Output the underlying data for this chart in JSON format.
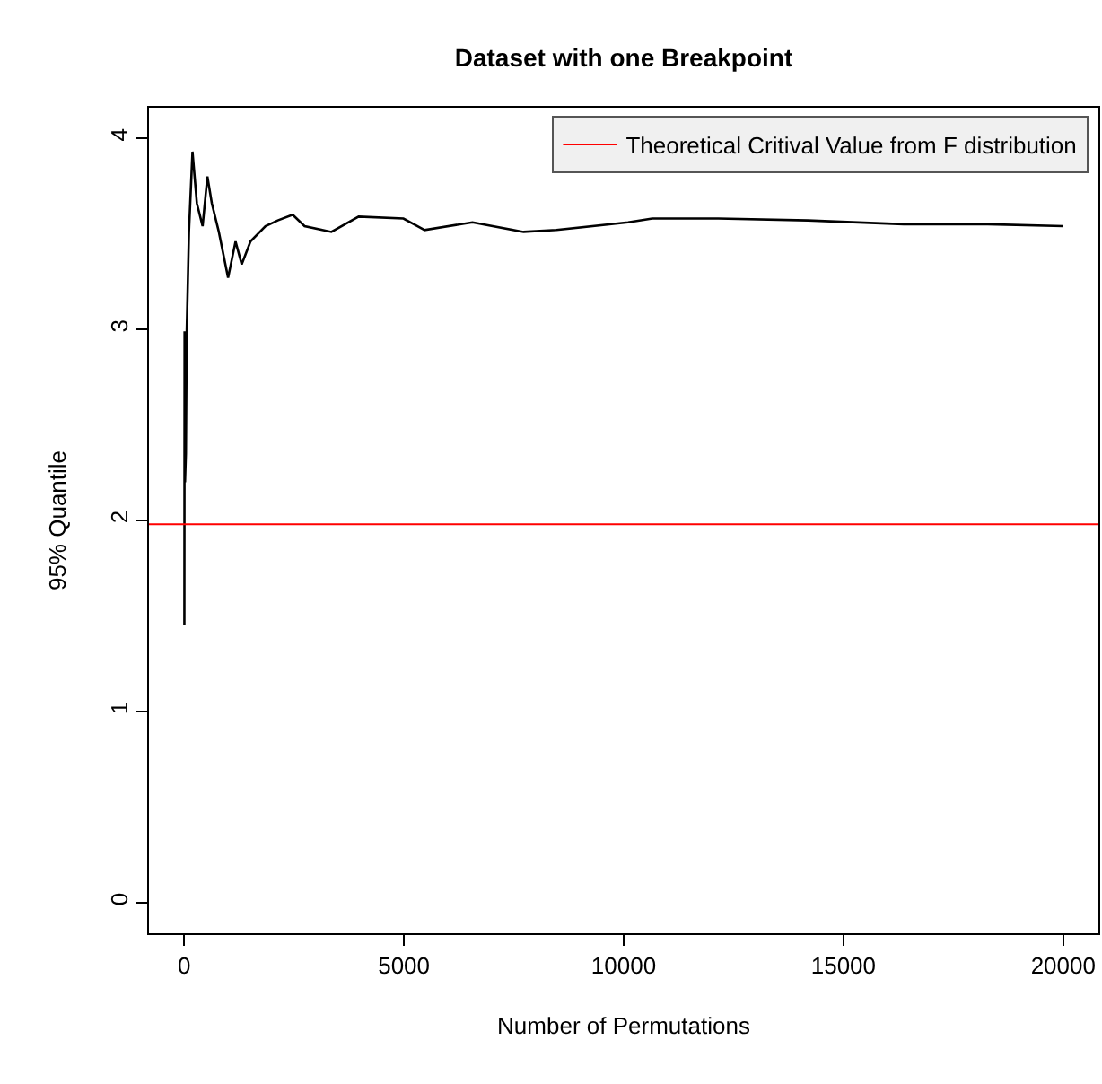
{
  "chart_data": {
    "type": "line",
    "title": "Dataset with one Breakpoint",
    "xlabel": "Number of Permutations",
    "ylabel": "95% Quantile",
    "series": [
      {
        "color": "#000000",
        "x": [
          5,
          10,
          20,
          40,
          60,
          80,
          110,
          190,
          290,
          420,
          530,
          630,
          790,
          1000,
          1170,
          1310,
          1510,
          1850,
          2130,
          2470,
          2740,
          3350,
          3970,
          4990,
          5470,
          6560,
          7720,
          8470,
          10100,
          10650,
          12150,
          14190,
          16370,
          18280,
          20000
        ],
        "values": [
          1.45,
          2.99,
          2.2,
          2.35,
          3.0,
          3.2,
          3.51,
          3.93,
          3.66,
          3.54,
          3.8,
          3.66,
          3.51,
          3.27,
          3.46,
          3.34,
          3.46,
          3.54,
          3.57,
          3.6,
          3.54,
          3.51,
          3.59,
          3.58,
          3.52,
          3.56,
          3.51,
          3.52,
          3.56,
          3.58,
          3.58,
          3.57,
          3.55,
          3.55,
          3.54
        ]
      }
    ],
    "ref_lines": [
      {
        "axis": "y",
        "value": 1.98,
        "label": "Theoretical Critival Value from F distribution",
        "color": "#ff0000"
      }
    ],
    "xlim": [
      -800,
      20800
    ],
    "xticks": [
      0,
      5000,
      10000,
      15000,
      20000
    ],
    "ylim": [
      -0.16,
      4.16
    ],
    "yticks": [
      0,
      1,
      2,
      3,
      4
    ],
    "legend": "top right",
    "marker": "none",
    "line_style": "solid"
  }
}
